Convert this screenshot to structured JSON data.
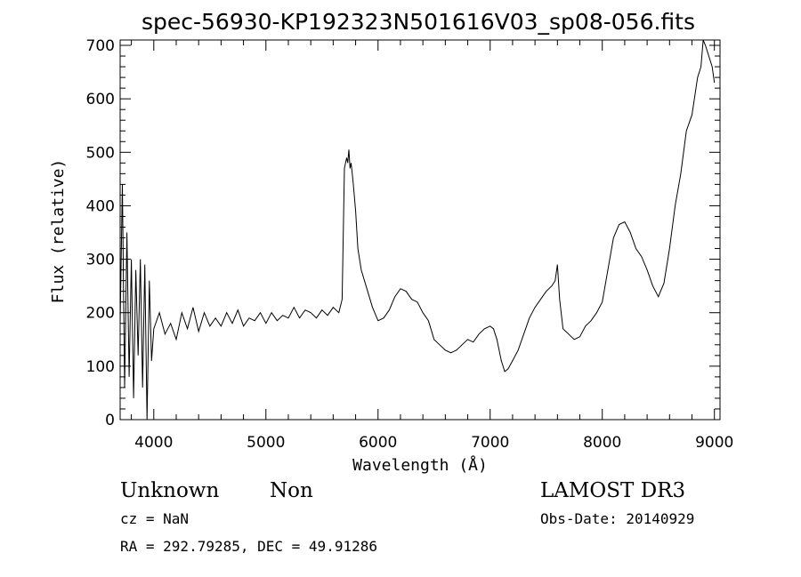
{
  "chart_data": {
    "type": "line",
    "title": "spec-56930-KP192323N501616V03_sp08-056.fits",
    "xlabel": "Wavelength (Å)",
    "ylabel": "Flux (relative)",
    "xlim": [
      3700,
      9050
    ],
    "ylim": [
      0,
      710
    ],
    "xticks": [
      4000,
      5000,
      6000,
      7000,
      8000,
      9000
    ],
    "yticks": [
      0,
      100,
      200,
      300,
      400,
      500,
      600,
      700
    ],
    "grid": false,
    "series": [
      {
        "x": [
          3700,
          3720,
          3740,
          3760,
          3780,
          3800,
          3820,
          3840,
          3860,
          3880,
          3900,
          3920,
          3940,
          3960,
          3980,
          4000,
          4050,
          4100,
          4150,
          4200,
          4250,
          4300,
          4350,
          4400,
          4450,
          4500,
          4550,
          4600,
          4650,
          4700,
          4750,
          4800,
          4850,
          4900,
          4950,
          5000,
          5050,
          5100,
          5150,
          5200,
          5250,
          5300,
          5350,
          5400,
          5450,
          5500,
          5550,
          5600,
          5650,
          5680,
          5700,
          5720,
          5730,
          5740,
          5750,
          5760,
          5770,
          5780,
          5800,
          5820,
          5850,
          5900,
          5950,
          6000,
          6050,
          6100,
          6150,
          6200,
          6250,
          6300,
          6350,
          6400,
          6450,
          6500,
          6550,
          6600,
          6650,
          6700,
          6750,
          6800,
          6850,
          6900,
          6950,
          7000,
          7030,
          7060,
          7100,
          7130,
          7160,
          7200,
          7250,
          7300,
          7350,
          7400,
          7450,
          7500,
          7550,
          7580,
          7600,
          7620,
          7650,
          7700,
          7750,
          7800,
          7850,
          7900,
          7950,
          8000,
          8050,
          8100,
          8150,
          8200,
          8250,
          8300,
          8350,
          8400,
          8450,
          8500,
          8550,
          8600,
          8650,
          8700,
          8750,
          8800,
          8850,
          8880,
          8900,
          8920,
          8950,
          8980,
          9000
        ],
        "y": [
          180,
          440,
          60,
          350,
          80,
          300,
          40,
          280,
          120,
          300,
          60,
          290,
          0,
          260,
          110,
          170,
          200,
          160,
          180,
          150,
          200,
          170,
          210,
          165,
          200,
          175,
          190,
          175,
          200,
          180,
          205,
          175,
          190,
          185,
          200,
          180,
          200,
          185,
          195,
          190,
          210,
          190,
          205,
          200,
          190,
          205,
          195,
          210,
          200,
          225,
          470,
          490,
          480,
          505,
          470,
          480,
          460,
          440,
          390,
          320,
          280,
          245,
          210,
          185,
          190,
          205,
          230,
          245,
          240,
          225,
          220,
          200,
          185,
          150,
          140,
          130,
          125,
          130,
          140,
          150,
          145,
          160,
          170,
          175,
          170,
          150,
          110,
          90,
          95,
          110,
          130,
          160,
          190,
          210,
          225,
          240,
          250,
          260,
          290,
          225,
          170,
          160,
          150,
          155,
          175,
          185,
          200,
          220,
          280,
          340,
          365,
          370,
          350,
          320,
          305,
          280,
          250,
          230,
          255,
          320,
          400,
          460,
          540,
          570,
          640,
          660,
          710,
          700,
          680,
          660,
          630
        ]
      }
    ]
  },
  "info": {
    "object_class": "Unknown",
    "subclass": "Non",
    "survey": "LAMOST DR3",
    "cz": "cz = NaN",
    "obs_date": "Obs-Date: 20140929",
    "coords": "RA = 292.79285, DEC =  49.91286"
  }
}
